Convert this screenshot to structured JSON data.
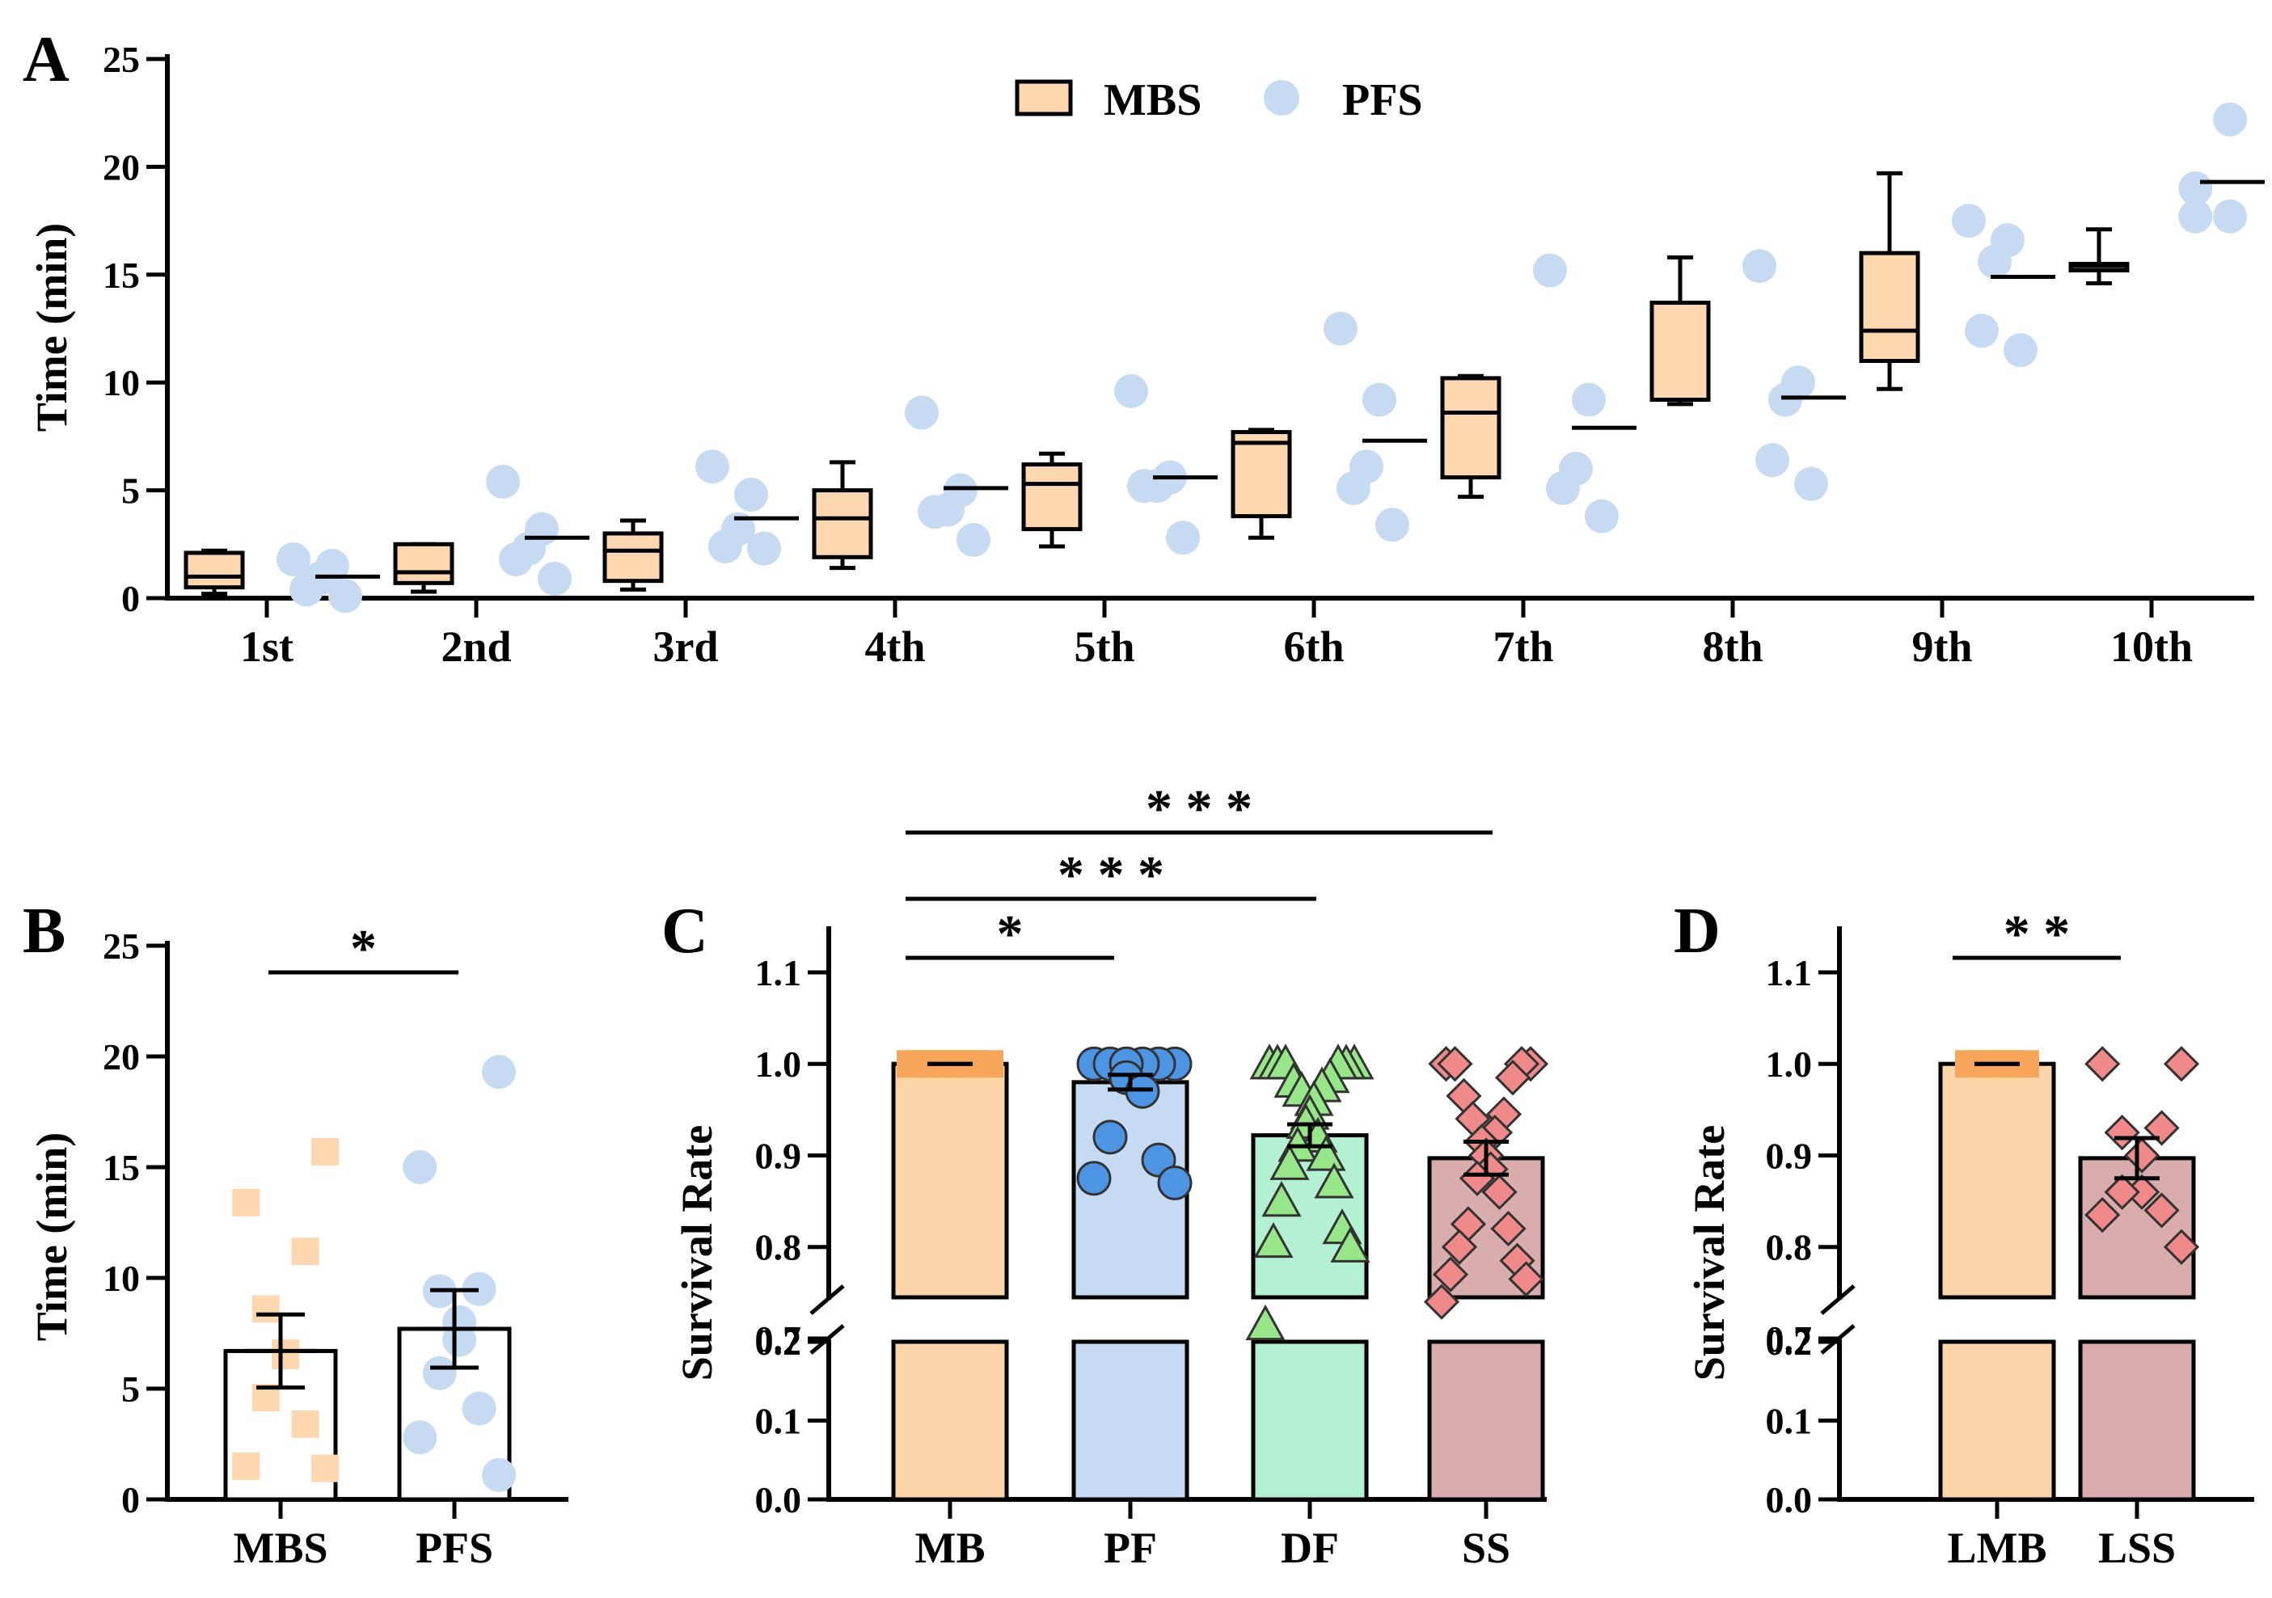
{
  "colors": {
    "mbs": "#fcd7b0",
    "pfs": "#c6daf2",
    "mb": "#fcd5aa",
    "pf": "#c6daf3",
    "df": "#b4f0d2",
    "ss": "#d9adad",
    "mb_marker": "#f7a65c",
    "pf_marker": "#4d95e3",
    "df_marker": "#97e68a",
    "ss_marker": "#f08a8a"
  },
  "chart_data": [
    {
      "id": "A",
      "panel_label": "A",
      "type": "box+scatter",
      "ylabel": "Time (min)",
      "ylim": [
        0,
        25
      ],
      "yticks": [
        "0",
        "5",
        "10",
        "15",
        "20",
        "25"
      ],
      "categories": [
        "1st",
        "2nd",
        "3rd",
        "4th",
        "5th",
        "6th",
        "7th",
        "8th",
        "9th",
        "10th"
      ],
      "legend": [
        "MBS",
        "PFS"
      ],
      "legend_position": "top-center",
      "boxes_MBS": [
        {
          "min": 0.2,
          "q1": 0.5,
          "median": 1.0,
          "q3": 2.1,
          "max": 2.2
        },
        {
          "min": 0.3,
          "q1": 0.7,
          "median": 1.2,
          "q3": 2.5,
          "max": 2.5
        },
        {
          "min": 0.4,
          "q1": 0.8,
          "median": 2.2,
          "q3": 3.0,
          "max": 3.6
        },
        {
          "min": 1.4,
          "q1": 1.9,
          "median": 3.7,
          "q3": 5.0,
          "max": 6.3
        },
        {
          "min": 2.4,
          "q1": 3.2,
          "median": 5.3,
          "q3": 6.2,
          "max": 6.7
        },
        {
          "min": 2.8,
          "q1": 3.8,
          "median": 7.2,
          "q3": 7.7,
          "max": 7.8
        },
        {
          "min": 4.7,
          "q1": 5.6,
          "median": 8.6,
          "q3": 10.2,
          "max": 10.3
        },
        {
          "min": 9.0,
          "q1": 9.2,
          "median": 9.2,
          "q3": 13.7,
          "max": 15.8
        },
        {
          "min": 9.7,
          "q1": 11.0,
          "median": 12.4,
          "q3": 16.0,
          "max": 19.7
        },
        {
          "min": 14.6,
          "q1": 15.2,
          "median": 15.4,
          "q3": 15.5,
          "max": 17.1
        }
      ],
      "points_PFS": [
        [
          0.1,
          0.4,
          0.9,
          1.5,
          1.8
        ],
        [
          0.9,
          1.8,
          2.3,
          3.2,
          5.4
        ],
        [
          2.3,
          2.4,
          3.2,
          4.8,
          6.1
        ],
        [
          2.7,
          4.0,
          4.1,
          5.0,
          8.6
        ],
        [
          2.8,
          5.2,
          5.2,
          5.6,
          9.6
        ],
        [
          3.4,
          5.1,
          6.1,
          9.2,
          12.5
        ],
        [
          3.8,
          5.1,
          6.0,
          9.2,
          15.2
        ],
        [
          5.3,
          6.4,
          9.2,
          10.0,
          15.4
        ],
        [
          11.5,
          12.4,
          15.6,
          16.6,
          17.5
        ],
        [
          17.7,
          17.7,
          19.0,
          22.2
        ]
      ],
      "means_PFS": [
        1.0,
        2.8,
        3.7,
        5.1,
        5.6,
        7.3,
        7.9,
        9.3,
        14.9,
        19.3
      ]
    },
    {
      "id": "B",
      "panel_label": "B",
      "type": "bar+scatter",
      "ylabel": "Time (min)",
      "ylim": [
        0,
        25
      ],
      "yticks": [
        "0",
        "5",
        "10",
        "15",
        "20",
        "25"
      ],
      "categories": [
        "MBS",
        "PFS"
      ],
      "values": [
        6.7,
        7.7
      ],
      "sem": [
        1.65,
        1.75
      ],
      "points": [
        [
          1.4,
          1.5,
          3.4,
          4.6,
          6.5,
          6.6,
          8.6,
          11.2,
          13.4,
          15.7
        ],
        [
          1.1,
          2.8,
          4.1,
          5.7,
          7.2,
          8.0,
          9.4,
          9.5,
          15.0,
          19.3
        ]
      ],
      "significance": [
        {
          "from": 0,
          "to": 1,
          "label": "*"
        }
      ]
    },
    {
      "id": "C",
      "panel_label": "C",
      "type": "bar+scatter",
      "ylabel": "Survival Rate",
      "yticks_lower": [
        "0.0",
        "0.1",
        "0.2"
      ],
      "yticks_upper": [
        "0.7",
        "0.8",
        "0.9",
        "1.0",
        "1.1"
      ],
      "axis_break": [
        0.2,
        0.7
      ],
      "categories": [
        "MB",
        "PF",
        "DF",
        "SS"
      ],
      "values": [
        1.0,
        0.98,
        0.922,
        0.897
      ],
      "sem": [
        0.0,
        0.008,
        0.012,
        0.018
      ],
      "points": [
        [
          1.0,
          1.0,
          1.0,
          1.0,
          1.0,
          1.0,
          1.0
        ],
        [
          1.0,
          1.0,
          1.0,
          1.0,
          1.0,
          1.0,
          0.985,
          0.97,
          0.92,
          0.895,
          0.875,
          0.87
        ],
        [
          1.0,
          1.0,
          1.0,
          1.0,
          1.0,
          1.0,
          0.985,
          0.98,
          0.975,
          0.97,
          0.96,
          0.945,
          0.935,
          0.92,
          0.91,
          0.9,
          0.89,
          0.87,
          0.85,
          0.82,
          0.805,
          0.8,
          0.715
        ],
        [
          1.0,
          1.0,
          1.0,
          1.0,
          0.985,
          0.965,
          0.945,
          0.94,
          0.925,
          0.915,
          0.9,
          0.885,
          0.875,
          0.86,
          0.825,
          0.82,
          0.8,
          0.785,
          0.77,
          0.765,
          0.74
        ]
      ],
      "significance": [
        {
          "from": 0,
          "to": 1,
          "label": "*"
        },
        {
          "from": 0,
          "to": 2,
          "label": "* * *"
        },
        {
          "from": 0,
          "to": 3,
          "label": "* * *"
        }
      ]
    },
    {
      "id": "D",
      "panel_label": "D",
      "type": "bar+scatter",
      "ylabel": "Survival Rate",
      "yticks_lower": [
        "0.0",
        "0.1",
        "0.2"
      ],
      "yticks_upper": [
        "0.7",
        "0.8",
        "0.9",
        "1.0",
        "1.1"
      ],
      "axis_break": [
        0.2,
        0.7
      ],
      "categories": [
        "LMB",
        "LSS"
      ],
      "values": [
        1.0,
        0.897
      ],
      "sem": [
        0.0,
        0.022
      ],
      "points": [
        [
          1.0,
          1.0,
          1.0,
          1.0,
          1.0
        ],
        [
          1.0,
          1.0,
          0.93,
          0.925,
          0.9,
          0.86,
          0.86,
          0.84,
          0.835,
          0.8
        ]
      ],
      "significance": [
        {
          "from": 0,
          "to": 1,
          "label": "* *"
        }
      ]
    }
  ]
}
